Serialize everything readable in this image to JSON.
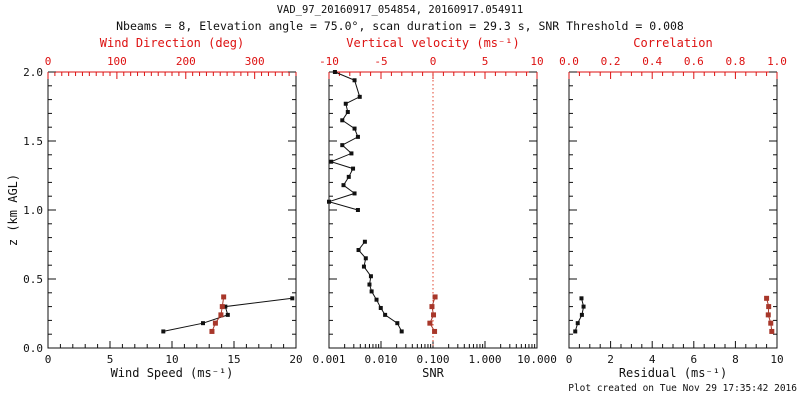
{
  "header": {
    "title": "VAD_97_20160917_054854, 20160917.054911",
    "subtitle": "Nbeams = 8, Elevation angle = 75.0°, scan duration = 29.3 s, SNR Threshold = 0.008"
  },
  "footer": {
    "created_text": "Plot created on Tue Nov 29 17:35:42 2016"
  },
  "colors": {
    "background": "#ffffff",
    "frame": "#111111",
    "axis_red": "#dd1111",
    "series_black": "#111111",
    "series_red": "#a8372a",
    "zero_line": "#e0442e"
  },
  "y_axis": {
    "label": "z (km AGL)",
    "range": [
      0,
      2
    ],
    "tick_values": [
      0.0,
      0.5,
      1.0,
      1.5,
      2.0
    ],
    "tick_labels": [
      "0.0",
      "0.5",
      "1.0",
      "1.5",
      "2.0"
    ],
    "minor_step": 0.1,
    "major_step": 0.5
  },
  "chart_data": [
    {
      "type": "line",
      "id": "wind-panel",
      "bottom_axis": {
        "label": "Wind Speed (ms⁻¹)",
        "scale": "linear",
        "range": [
          0,
          20
        ],
        "tick_values": [
          0,
          5,
          10,
          15,
          20
        ],
        "tick_labels": [
          "0",
          "5",
          "10",
          "15",
          "20"
        ],
        "minor_step": 1
      },
      "top_axis": {
        "label": "Wind Direction (deg)",
        "scale": "linear",
        "range": [
          0,
          360
        ],
        "tick_values": [
          0,
          100,
          200,
          300
        ],
        "tick_labels": [
          "0",
          "100",
          "200",
          "300"
        ],
        "minor_step": 10
      },
      "series": [
        {
          "name": "wind-speed",
          "axis": "bottom",
          "color": "series_black",
          "points": [
            [
              9.3,
              0.12
            ],
            [
              12.5,
              0.18
            ],
            [
              14.5,
              0.24
            ],
            [
              14.3,
              0.3
            ],
            [
              19.7,
              0.36
            ]
          ]
        },
        {
          "name": "wind-direction",
          "axis": "top",
          "color": "series_red",
          "points": [
            [
              238,
              0.12
            ],
            [
              243,
              0.18
            ],
            [
              251,
              0.24
            ],
            [
              253,
              0.3
            ],
            [
              255,
              0.37
            ]
          ]
        }
      ]
    },
    {
      "type": "line",
      "id": "snr-panel",
      "bottom_axis": {
        "label": "SNR",
        "scale": "log",
        "range": [
          0.001,
          10
        ],
        "tick_values": [
          0.001,
          0.01,
          0.1,
          1,
          10
        ],
        "tick_labels": [
          "0.001",
          "0.010",
          "0.100",
          "1.000",
          "10.000"
        ]
      },
      "top_axis": {
        "label": "Vertical velocity (ms⁻¹)",
        "scale": "linear",
        "range": [
          -10,
          10
        ],
        "tick_values": [
          -10,
          -5,
          0,
          5,
          10
        ],
        "tick_labels": [
          "-10",
          "-5",
          "0",
          "5",
          "10"
        ],
        "minor_step": 1
      },
      "ref_line": {
        "axis": "top",
        "value": 0
      },
      "series": [
        {
          "name": "snr-upper",
          "axis": "bottom",
          "color": "series_black",
          "points": [
            [
              0.0013,
              2.0
            ],
            [
              0.0031,
              1.94
            ],
            [
              0.0039,
              1.82
            ],
            [
              0.0021,
              1.77
            ],
            [
              0.0023,
              1.71
            ],
            [
              0.0018,
              1.65
            ],
            [
              0.0031,
              1.59
            ],
            [
              0.0036,
              1.53
            ],
            [
              0.0018,
              1.47
            ],
            [
              0.0027,
              1.41
            ],
            [
              0.0011,
              1.35
            ],
            [
              0.0029,
              1.3
            ],
            [
              0.0024,
              1.24
            ],
            [
              0.0019,
              1.18
            ],
            [
              0.0031,
              1.12
            ],
            [
              0.001,
              1.06
            ],
            [
              0.0036,
              1.0
            ]
          ]
        },
        {
          "name": "snr-lower",
          "axis": "bottom",
          "color": "series_black",
          "points": [
            [
              0.0049,
              0.77
            ],
            [
              0.0037,
              0.71
            ],
            [
              0.0051,
              0.65
            ],
            [
              0.0047,
              0.59
            ],
            [
              0.0064,
              0.52
            ],
            [
              0.006,
              0.46
            ],
            [
              0.0066,
              0.41
            ],
            [
              0.0082,
              0.35
            ],
            [
              0.0099,
              0.29
            ],
            [
              0.012,
              0.24
            ],
            [
              0.0206,
              0.18
            ],
            [
              0.025,
              0.12
            ]
          ]
        },
        {
          "name": "vertical-velocity",
          "axis": "top",
          "color": "series_red",
          "points": [
            [
              0.2,
              0.37
            ],
            [
              -0.1,
              0.3
            ],
            [
              0.05,
              0.24
            ],
            [
              -0.3,
              0.18
            ],
            [
              0.15,
              0.12
            ]
          ]
        }
      ]
    },
    {
      "type": "line",
      "id": "residual-panel",
      "bottom_axis": {
        "label": "Residual (ms⁻¹)",
        "scale": "linear",
        "range": [
          0,
          10
        ],
        "tick_values": [
          0,
          2,
          4,
          6,
          8,
          10
        ],
        "tick_labels": [
          "0",
          "2",
          "4",
          "6",
          "8",
          "10"
        ],
        "minor_step": 0.5
      },
      "top_axis": {
        "label": "Correlation",
        "scale": "linear",
        "range": [
          0,
          1
        ],
        "tick_values": [
          0,
          0.2,
          0.4,
          0.6,
          0.8,
          1.0
        ],
        "tick_labels": [
          "0.0",
          "0.2",
          "0.4",
          "0.6",
          "0.8",
          "1.0"
        ],
        "minor_step": 0.05
      },
      "series": [
        {
          "name": "residual",
          "axis": "bottom",
          "color": "series_black",
          "points": [
            [
              0.6,
              0.36
            ],
            [
              0.7,
              0.3
            ],
            [
              0.62,
              0.24
            ],
            [
              0.42,
              0.18
            ],
            [
              0.3,
              0.12
            ]
          ]
        },
        {
          "name": "correlation",
          "axis": "top",
          "color": "series_red",
          "points": [
            [
              0.95,
              0.36
            ],
            [
              0.96,
              0.3
            ],
            [
              0.958,
              0.24
            ],
            [
              0.97,
              0.18
            ],
            [
              0.975,
              0.12
            ]
          ]
        }
      ]
    }
  ]
}
